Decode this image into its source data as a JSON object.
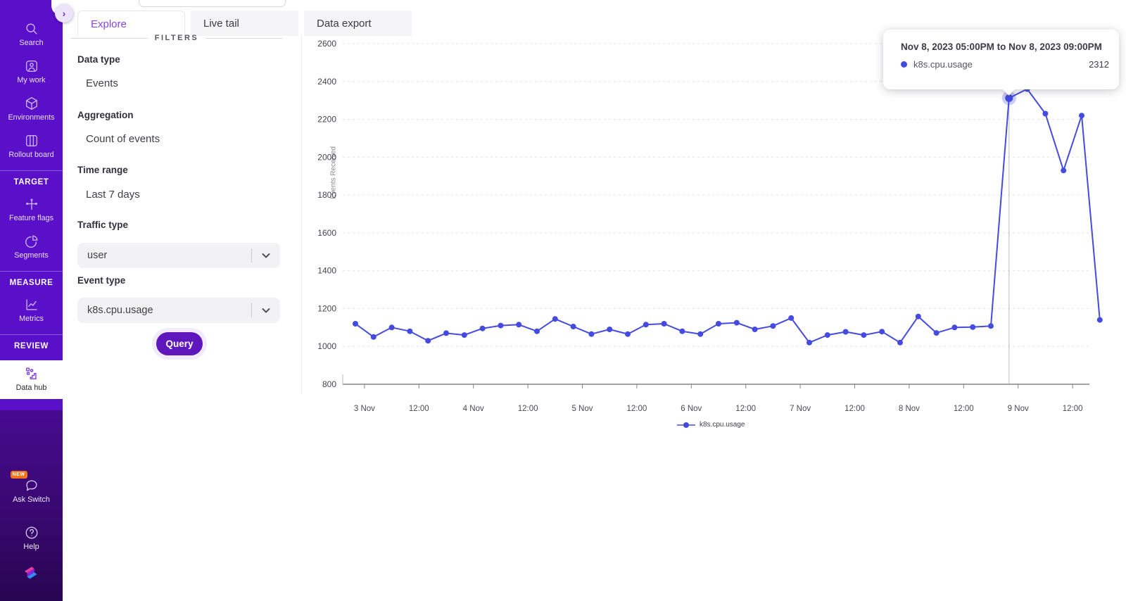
{
  "sidebar": {
    "expand_button": "›",
    "groups": [
      {
        "items": [
          {
            "icon": "search-icon",
            "label": "Search"
          },
          {
            "icon": "my-work-icon",
            "label": "My work"
          },
          {
            "icon": "environments-icon",
            "label": "Environments"
          },
          {
            "icon": "rollout-board-icon",
            "label": "Rollout board"
          }
        ]
      },
      {
        "header": "TARGET",
        "items": [
          {
            "icon": "feature-flags-icon",
            "label": "Feature flags"
          },
          {
            "icon": "segments-icon",
            "label": "Segments"
          }
        ]
      },
      {
        "header": "MEASURE",
        "items": [
          {
            "icon": "metrics-icon",
            "label": "Metrics"
          }
        ]
      },
      {
        "header": "REVIEW",
        "items": [
          {
            "icon": "data-hub-icon",
            "label": "Data hub",
            "active": true
          }
        ]
      }
    ],
    "bottom": [
      {
        "icon": "ask-switch-icon",
        "label": "Ask Switch",
        "badge": "NEW"
      },
      {
        "icon": "help-icon",
        "label": "Help"
      }
    ]
  },
  "tabs": [
    {
      "label": "Explore",
      "active": true
    },
    {
      "label": "Live tail",
      "active": false
    },
    {
      "label": "Data export",
      "active": false
    }
  ],
  "filters": {
    "header": "FILTERS",
    "groups": [
      {
        "label": "Data type",
        "value": "Events",
        "type": "text"
      },
      {
        "label": "Aggregation",
        "value": "Count of events",
        "type": "text"
      },
      {
        "label": "Time range",
        "value": "Last 7 days",
        "type": "text"
      },
      {
        "label": "Traffic type",
        "value": "user",
        "type": "dropdown"
      },
      {
        "label": "Event type",
        "value": "k8s.cpu.usage",
        "type": "dropdown"
      }
    ],
    "query_button": "Query"
  },
  "tooltip": {
    "title": "Nov 8, 2023 05:00PM to Nov 8, 2023 09:00PM",
    "series": "k8s.cpu.usage",
    "value": "2312",
    "dot_color": "#454be0"
  },
  "chart_data": {
    "type": "line",
    "ylabel": "Events Received",
    "ylim": [
      800,
      2600
    ],
    "ytick_step": 200,
    "grid": true,
    "legend_position": "bottom",
    "legend": {
      "label": "k8s.cpu.usage",
      "color": "#454be0"
    },
    "x_unit": "hours since Nov 3 2023 00:00",
    "x_ticks": [
      {
        "hour": 0,
        "label": "3 Nov"
      },
      {
        "hour": 12,
        "label": "12:00"
      },
      {
        "hour": 24,
        "label": "4 Nov"
      },
      {
        "hour": 36,
        "label": "12:00"
      },
      {
        "hour": 48,
        "label": "5 Nov"
      },
      {
        "hour": 60,
        "label": "12:00"
      },
      {
        "hour": 72,
        "label": "6 Nov"
      },
      {
        "hour": 84,
        "label": "12:00"
      },
      {
        "hour": 96,
        "label": "7 Nov"
      },
      {
        "hour": 108,
        "label": "12:00"
      },
      {
        "hour": 120,
        "label": "8 Nov"
      },
      {
        "hour": 132,
        "label": "12:00"
      },
      {
        "hour": 144,
        "label": "9 Nov"
      },
      {
        "hour": 156,
        "label": "12:00"
      }
    ],
    "series": [
      {
        "name": "k8s.cpu.usage",
        "color": "#454be0",
        "points": [
          [
            -3,
            1120
          ],
          [
            1,
            1050
          ],
          [
            5,
            1100
          ],
          [
            9,
            1080
          ],
          [
            13,
            1030
          ],
          [
            17,
            1070
          ],
          [
            21,
            1060
          ],
          [
            25,
            1095
          ],
          [
            29,
            1110
          ],
          [
            33,
            1115
          ],
          [
            37,
            1080
          ],
          [
            41,
            1145
          ],
          [
            45,
            1105
          ],
          [
            49,
            1065
          ],
          [
            53,
            1090
          ],
          [
            57,
            1065
          ],
          [
            61,
            1115
          ],
          [
            65,
            1120
          ],
          [
            69,
            1080
          ],
          [
            73,
            1065
          ],
          [
            77,
            1120
          ],
          [
            81,
            1125
          ],
          [
            85,
            1090
          ],
          [
            89,
            1108
          ],
          [
            93,
            1150
          ],
          [
            97,
            1020
          ],
          [
            101,
            1060
          ],
          [
            105,
            1077
          ],
          [
            109,
            1060
          ],
          [
            113,
            1078
          ],
          [
            117,
            1020
          ],
          [
            121,
            1158
          ],
          [
            125,
            1071
          ],
          [
            129,
            1100
          ],
          [
            133,
            1102
          ],
          [
            137,
            1108
          ],
          [
            141,
            2312
          ],
          [
            145,
            2360
          ],
          [
            149,
            2230
          ],
          [
            153,
            1930
          ],
          [
            157,
            2220
          ],
          [
            161,
            1140
          ]
        ]
      }
    ],
    "highlight": {
      "hour": 141,
      "value": 2312
    }
  },
  "colors": {
    "sidebar_purple": "#5a0fc8",
    "sidebar_bottom_purple": "#280551",
    "accent_purple": "#7c3aed",
    "line_blue": "#454be0",
    "badge_orange": "#f97316"
  }
}
